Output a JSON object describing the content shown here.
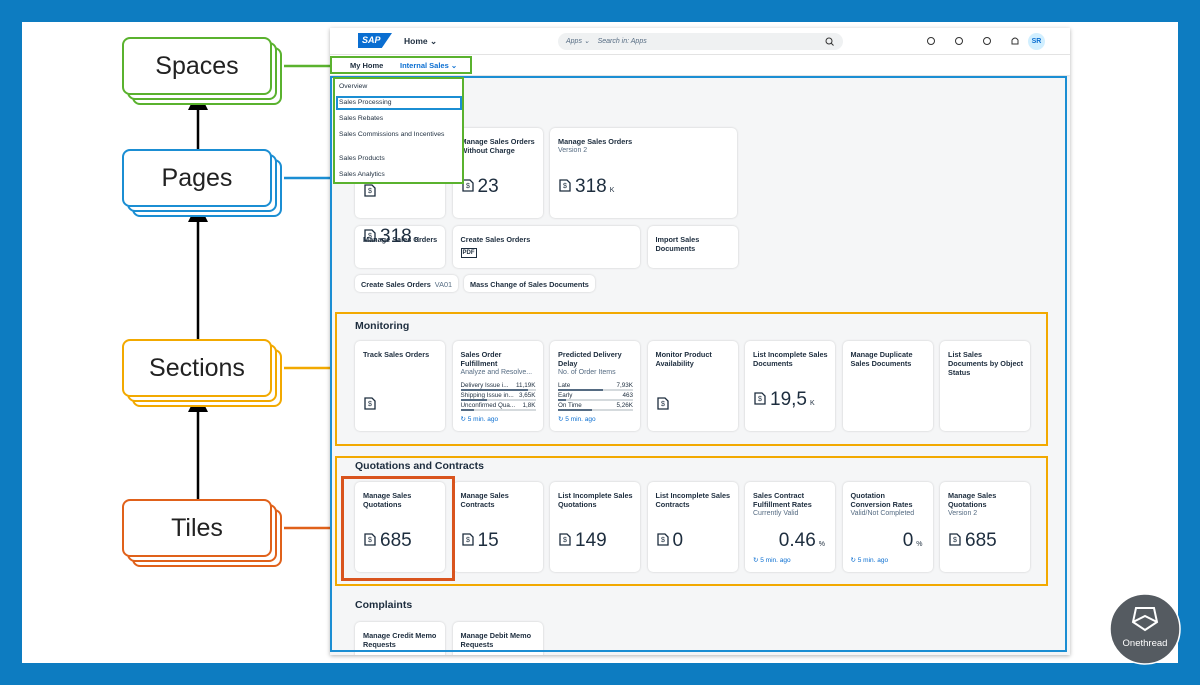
{
  "diagram": {
    "labels": [
      "Spaces",
      "Pages",
      "Sections",
      "Tiles"
    ]
  },
  "shell": {
    "logo": "SAP",
    "home": "Home",
    "search_scope": "Apps",
    "search_placeholder": "Search in: Apps",
    "user": "SR"
  },
  "space_tabs": [
    "My Home",
    "Internal Sales"
  ],
  "pages_menu": [
    "Overview",
    "Sales Processing",
    "Sales Rebates",
    "Sales Commissions and Incentives",
    "Sales Products",
    "Sales Analytics"
  ],
  "sections": [
    {
      "tiles": [
        {
          "title": "Manage Sales Orders Without Charge",
          "value": "23"
        },
        {
          "title": "Manage Sales Orders",
          "subtitle": "Version 2",
          "value": "318",
          "unit": "K"
        },
        {
          "title": "Manage Sales Orders",
          "value": "318",
          "unit": "K"
        },
        {
          "title": "Create Sales Orders",
          "badge": "PDF"
        },
        {
          "title": "Import Sales Documents"
        }
      ],
      "links": [
        {
          "text": "Create Sales Orders",
          "code": "VA01"
        },
        {
          "text": "Mass Change of Sales Documents"
        }
      ]
    },
    {
      "title": "Monitoring",
      "tiles": [
        {
          "title": "Track Sales Orders",
          "icon": true
        },
        {
          "title": "Sales Order Fulfillment",
          "subtitle": "Analyze and Resolve...",
          "rows": [
            [
              "Delivery Issue i...",
              "11,19K"
            ],
            [
              "Shipping Issue in...",
              "3,65K"
            ],
            [
              "Unconfirmed Qua...",
              "1,8K"
            ]
          ],
          "footer": "5 min. ago"
        },
        {
          "title": "Predicted Delivery Delay",
          "subtitle": "No. of Order Items",
          "rows": [
            [
              "Late",
              "7,93K"
            ],
            [
              "Early",
              "463"
            ],
            [
              "On Time",
              "5,26K"
            ]
          ],
          "footer": "5 min. ago"
        },
        {
          "title": "Monitor Product Availability",
          "icon": true
        },
        {
          "title": "List Incomplete Sales Documents",
          "value": "19,5",
          "unit": "K"
        },
        {
          "title": "Manage Duplicate Sales Documents"
        },
        {
          "title": "List Sales Documents by Object Status"
        }
      ]
    },
    {
      "title": "Quotations and Contracts",
      "tiles": [
        {
          "title": "Manage Sales Quotations",
          "value": "685"
        },
        {
          "title": "Manage Sales Contracts",
          "value": "15"
        },
        {
          "title": "List Incomplete Sales Quotations",
          "value": "149"
        },
        {
          "title": "List Incomplete Sales Contracts",
          "value": "0"
        },
        {
          "title": "Sales Contract Fulfillment Rates",
          "subtitle": "Currently Valid",
          "value": "0.46",
          "unit": "%",
          "footer": "5 min. ago"
        },
        {
          "title": "Quotation Conversion Rates",
          "subtitle": "Valid/Not Completed",
          "value": "0",
          "unit": "%",
          "footer": "5 min. ago"
        },
        {
          "title": "Manage Sales Quotations",
          "subtitle": "Version 2",
          "value": "685"
        }
      ]
    },
    {
      "title": "Complaints",
      "tiles": [
        {
          "title": "Manage Credit Memo Requests"
        },
        {
          "title": "Manage Debit Memo Requests"
        }
      ]
    }
  ],
  "brand": "Onethread"
}
